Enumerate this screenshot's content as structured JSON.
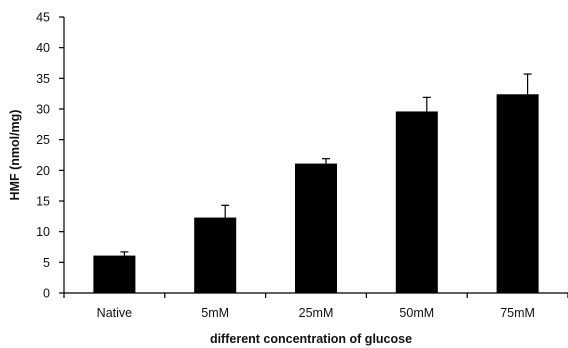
{
  "chart_data": {
    "type": "bar",
    "title": "",
    "xlabel": "different concentration of glucose",
    "ylabel": "HMF (nmol/mg)",
    "categories": [
      "Native",
      "5mM",
      "25mM",
      "50mM",
      "75mM"
    ],
    "values": [
      6.1,
      12.3,
      21.1,
      29.6,
      32.4
    ],
    "errors": [
      0.6,
      2.0,
      0.8,
      2.3,
      3.3
    ],
    "ylim": [
      0,
      45
    ],
    "yticks": [
      0,
      5,
      10,
      15,
      20,
      25,
      30,
      35,
      40,
      45
    ],
    "grid": false,
    "legend": "none",
    "bar_color": "#000000"
  }
}
